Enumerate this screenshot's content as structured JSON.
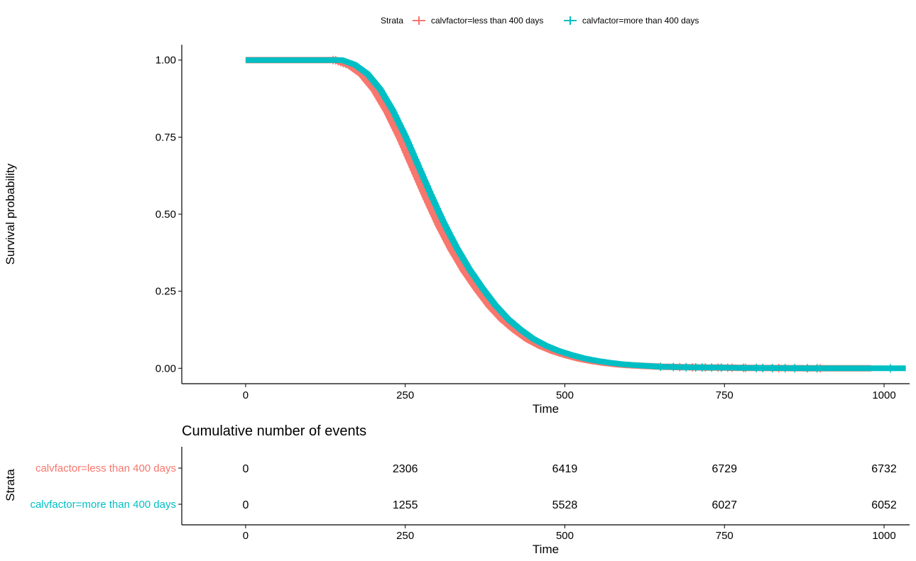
{
  "chart_data": [
    {
      "type": "line",
      "title": "",
      "xlabel": "Time",
      "ylabel": "Survival probability",
      "xlim": [
        -100,
        1040
      ],
      "ylim": [
        -0.05,
        1.05
      ],
      "x_ticks": [
        0,
        250,
        500,
        750,
        1000
      ],
      "x_tick_labels": [
        "0",
        "250",
        "500",
        "750",
        "1000"
      ],
      "y_ticks": [
        0,
        0.25,
        0.5,
        0.75,
        1
      ],
      "y_tick_labels": [
        "0.00",
        "0.25",
        "0.50",
        "0.75",
        "1.00"
      ],
      "grid": false,
      "legend": {
        "title": "Strata",
        "position": "top"
      },
      "series": [
        {
          "name": "calvfactor=less than 400 days",
          "color": "#F8766D",
          "x": [
            0,
            140,
            160,
            180,
            200,
            220,
            240,
            260,
            280,
            300,
            320,
            340,
            360,
            380,
            400,
            420,
            440,
            460,
            480,
            500,
            520,
            540,
            560,
            580,
            600,
            650,
            700,
            750,
            800,
            900,
            980
          ],
          "y": [
            1.0,
            1.0,
            0.985,
            0.955,
            0.905,
            0.835,
            0.75,
            0.655,
            0.56,
            0.47,
            0.39,
            0.32,
            0.26,
            0.205,
            0.16,
            0.125,
            0.095,
            0.073,
            0.056,
            0.043,
            0.032,
            0.024,
            0.018,
            0.013,
            0.01,
            0.005,
            0.003,
            0.002,
            0.001,
            0.0,
            0.0
          ],
          "censor_x": [
            137,
            141,
            145,
            149,
            153,
            157,
            680,
            700,
            720,
            740,
            755,
            762,
            783,
            835,
            900
          ]
        },
        {
          "name": "calvfactor=more than 400 days",
          "color": "#00BFC4",
          "x": [
            0,
            150,
            170,
            190,
            210,
            230,
            250,
            270,
            290,
            310,
            330,
            350,
            370,
            390,
            410,
            430,
            450,
            470,
            490,
            510,
            530,
            550,
            570,
            590,
            610,
            650,
            700,
            750,
            800,
            900,
            1000,
            1035
          ],
          "y": [
            1.0,
            1.0,
            0.985,
            0.955,
            0.905,
            0.835,
            0.75,
            0.655,
            0.56,
            0.47,
            0.39,
            0.32,
            0.26,
            0.205,
            0.16,
            0.125,
            0.095,
            0.073,
            0.056,
            0.043,
            0.032,
            0.024,
            0.018,
            0.013,
            0.01,
            0.005,
            0.003,
            0.002,
            0.001,
            0.0,
            0.0,
            0.0
          ],
          "censor_x": [
            650,
            670,
            690,
            705,
            715,
            730,
            745,
            780,
            800,
            810,
            825,
            845,
            860,
            880,
            895,
            1010
          ]
        }
      ]
    },
    {
      "type": "table",
      "title": "Cumulative number of events",
      "xlabel": "Time",
      "ylabel": "Strata",
      "xlim": [
        -100,
        1040
      ],
      "x_ticks": [
        0,
        250,
        500,
        750,
        1000
      ],
      "x_tick_labels": [
        "0",
        "250",
        "500",
        "750",
        "1000"
      ],
      "rows": [
        {
          "name": "calvfactor=less than 400 days",
          "color": "#F8766D",
          "values": [
            "0",
            "2306",
            "6419",
            "6729",
            "6732"
          ]
        },
        {
          "name": "calvfactor=more than 400 days",
          "color": "#00BFC4",
          "values": [
            "0",
            "1255",
            "5528",
            "6027",
            "6052"
          ]
        }
      ]
    }
  ]
}
